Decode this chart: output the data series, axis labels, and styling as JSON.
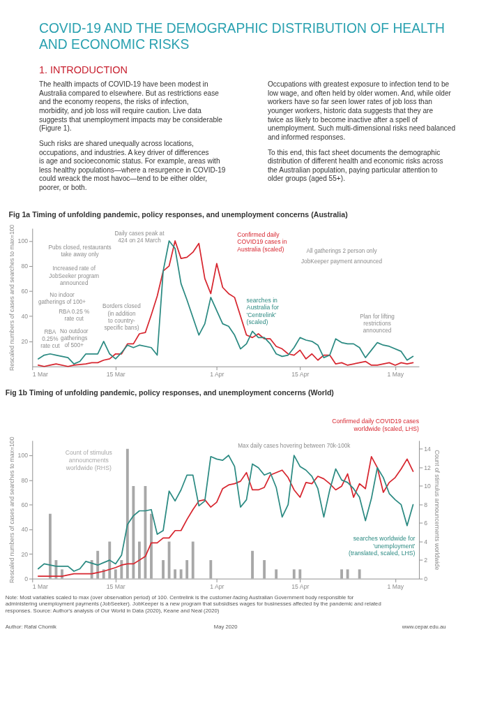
{
  "chart_data": [
    {
      "type": "other",
      "title": "COVID-19 AND THE DEMOGRAPHIC DISTRIBUTION OF HEALTH AND ECONOMIC RISKS",
      "annotations": [
        "1. INTRODUCTION",
        "The health impacts of COVID-19 have been modest in Australia compared to elsewhere. But as restrictions ease and the economy reopens, the risks of infection, morbidity, and job loss will require caution. Live data suggests that unemployment impacts may be considerable (Figure 1).",
        "Such risks are shared unequally across locations, occupations, and industries. A key driver of differences is age and socioeconomic status. For example, areas with less healthy populations—where a resurgence in COVID-19 could wreack the most havoc—tend to be either older, poorer, or both.",
        "Occupations with greatest exposure to infection tend to be low wage, and often held by older women. And, while older workers have so far seen lower rates of job loss than younger workers, historic data suggests that they are twice as likely to become inactive after a spell of unemployment. Such multi-dimensional risks need balanced and informed responses.",
        "To this end, this fact sheet documents the demographic distribution of different health and economic risks across the Australian population, paying particular attention to older groups (aged 55+)."
      ]
    },
    {
      "type": "line",
      "title": "Fig 1a Timing of unfolding pandemic, policy responses, and unemployment concerns (Australia)",
      "ylabel": "Rescaled numbers of cases and searches to max=100",
      "xlim": [
        "2020-03-01",
        "2020-05-05"
      ],
      "xticks": [
        {
          "value": "2020-03-01",
          "label": "1 Mar"
        },
        {
          "value": "2020-03-15",
          "label": "15 Mar"
        },
        {
          "value": "2020-04-01",
          "label": "1 Apr"
        },
        {
          "value": "2020-04-15",
          "label": "15 Apr"
        },
        {
          "value": "2020-05-01",
          "label": "1 May"
        }
      ],
      "ylim": [
        0,
        110
      ],
      "yticks": [
        20,
        40,
        60,
        80,
        100
      ],
      "series": [
        {
          "name": "Confirmed daily COVID19 cases in Australia (scaled)",
          "type": "line",
          "color": "#d7262f",
          "x": [
            "2020-03-02",
            "2020-03-03",
            "2020-03-04",
            "2020-03-05",
            "2020-03-07",
            "2020-03-08",
            "2020-03-10",
            "2020-03-11",
            "2020-03-12",
            "2020-03-13",
            "2020-03-14",
            "2020-03-15",
            "2020-03-16",
            "2020-03-17",
            "2020-03-18",
            "2020-03-19",
            "2020-03-20",
            "2020-03-21",
            "2020-03-22",
            "2020-03-23",
            "2020-03-24",
            "2020-03-25",
            "2020-03-26",
            "2020-03-27",
            "2020-03-28",
            "2020-03-29",
            "2020-03-30",
            "2020-03-31",
            "2020-04-01",
            "2020-04-02",
            "2020-04-03",
            "2020-04-04",
            "2020-04-06",
            "2020-04-07",
            "2020-04-08",
            "2020-04-09",
            "2020-04-10",
            "2020-04-11",
            "2020-04-12",
            "2020-04-13",
            "2020-04-14",
            "2020-04-15",
            "2020-04-16",
            "2020-04-17",
            "2020-04-18",
            "2020-04-19",
            "2020-04-20",
            "2020-04-21",
            "2020-04-22",
            "2020-04-23",
            "2020-04-25",
            "2020-04-26",
            "2020-04-27",
            "2020-04-28",
            "2020-04-30",
            "2020-05-01",
            "2020-05-02",
            "2020-05-03",
            "2020-05-04"
          ],
          "values": [
            1,
            0,
            1,
            2,
            0,
            1,
            2,
            3,
            3,
            5,
            6,
            10,
            10,
            18,
            18,
            26,
            27,
            41,
            56,
            76,
            80,
            100,
            86,
            87,
            91,
            98,
            70,
            58,
            82,
            63,
            58,
            55,
            25,
            23,
            26,
            22,
            22,
            16,
            14,
            10,
            9,
            13,
            6,
            10,
            5,
            9,
            9,
            2,
            3,
            1,
            3,
            4,
            1,
            1,
            3,
            1,
            3,
            2,
            3
          ]
        },
        {
          "name": "searches in Australia for 'Centrelink' (scaled)",
          "type": "line",
          "color": "#2b8a82",
          "x": [
            "2020-03-02",
            "2020-03-03",
            "2020-03-04",
            "2020-03-05",
            "2020-03-07",
            "2020-03-08",
            "2020-03-09",
            "2020-03-10",
            "2020-03-12",
            "2020-03-13",
            "2020-03-14",
            "2020-03-15",
            "2020-03-16",
            "2020-03-17",
            "2020-03-18",
            "2020-03-19",
            "2020-03-21",
            "2020-03-22",
            "2020-03-23",
            "2020-03-24",
            "2020-03-25",
            "2020-03-26",
            "2020-03-27",
            "2020-03-29",
            "2020-03-30",
            "2020-03-31",
            "2020-04-02",
            "2020-04-03",
            "2020-04-04",
            "2020-04-05",
            "2020-04-06",
            "2020-04-07",
            "2020-04-08",
            "2020-04-09",
            "2020-04-10",
            "2020-04-11",
            "2020-04-12",
            "2020-04-13",
            "2020-04-14",
            "2020-04-15",
            "2020-04-16",
            "2020-04-17",
            "2020-04-18",
            "2020-04-19",
            "2020-04-20",
            "2020-04-21",
            "2020-04-22",
            "2020-04-23",
            "2020-04-24",
            "2020-04-25",
            "2020-04-26",
            "2020-04-27",
            "2020-04-28",
            "2020-04-29",
            "2020-04-30",
            "2020-05-02",
            "2020-05-03",
            "2020-05-04"
          ],
          "values": [
            6,
            9,
            10,
            9,
            7,
            2,
            4,
            10,
            10,
            20,
            10,
            6,
            11,
            17,
            15,
            17,
            15,
            9,
            76,
            100,
            94,
            66,
            53,
            25,
            34,
            55,
            34,
            32,
            25,
            14,
            18,
            28,
            23,
            23,
            18,
            10,
            8,
            9,
            15,
            23,
            21,
            20,
            17,
            7,
            9,
            22,
            19,
            18,
            18,
            15,
            7,
            13,
            19,
            17,
            16,
            12,
            5,
            8
          ]
        }
      ],
      "annotations": [
        "Daily cases peak at\n424 on 24 March",
        "Pubs closed, restaurants\ntake away only",
        "Increased rate of\nJobSeeker program\nannounced",
        "No indoor\ngatherings of 100+",
        "RBA 0.25 %\nrate cut",
        "Borders closed\n(in addition\nto country-\nspecific bans)",
        "No outdoor\ngatherings\nof 500+",
        "RBA\n0.25%\nrate cut",
        "All gatherings 2 person only",
        "JobKeeper payment announced",
        "Plan for lifting\nrestrictions\nannounced"
      ]
    },
    {
      "type": "line",
      "title": "Fig 1b Timing of unfolding pandemic, policy responses, and unemployment concerns (World)",
      "ylabel": "Rescaled numbers of cases and searches to max=100",
      "y2label": "Count of stimulus announcements worldwide",
      "xlim": [
        "2020-03-01",
        "2020-05-05"
      ],
      "xticks": [
        {
          "value": "2020-03-01",
          "label": "1 Mar"
        },
        {
          "value": "2020-03-15",
          "label": "15 Mar"
        },
        {
          "value": "2020-04-01",
          "label": "1 Apr"
        },
        {
          "value": "2020-04-15",
          "label": "15 Apr"
        },
        {
          "value": "2020-05-01",
          "label": "1 May"
        }
      ],
      "ylim": [
        0,
        112
      ],
      "yticks": [
        0,
        20,
        40,
        60,
        80,
        100
      ],
      "y2lim": [
        0,
        14.9
      ],
      "y2ticks": [
        0,
        2,
        4,
        6,
        8,
        10,
        12,
        14
      ],
      "series": [
        {
          "name": "Confirmed daily COVID19 cases worldwide (scaled, LHS)",
          "type": "line",
          "color": "#d7262f",
          "x": [
            "2020-03-02",
            "2020-03-04",
            "2020-03-06",
            "2020-03-08",
            "2020-03-11",
            "2020-03-12",
            "2020-03-13",
            "2020-03-15",
            "2020-03-16",
            "2020-03-17",
            "2020-03-18",
            "2020-03-19",
            "2020-03-20",
            "2020-03-21",
            "2020-03-22",
            "2020-03-23",
            "2020-03-24",
            "2020-03-25",
            "2020-03-26",
            "2020-03-27",
            "2020-03-28",
            "2020-03-29",
            "2020-03-30",
            "2020-03-31",
            "2020-04-01",
            "2020-04-02",
            "2020-04-03",
            "2020-04-04",
            "2020-04-05",
            "2020-04-06",
            "2020-04-07",
            "2020-04-08",
            "2020-04-09",
            "2020-04-10",
            "2020-04-11",
            "2020-04-12",
            "2020-04-13",
            "2020-04-14",
            "2020-04-15",
            "2020-04-16",
            "2020-04-17",
            "2020-04-18",
            "2020-04-19",
            "2020-04-20",
            "2020-04-21",
            "2020-04-22",
            "2020-04-23",
            "2020-04-24",
            "2020-04-25",
            "2020-04-26",
            "2020-04-27",
            "2020-04-28",
            "2020-04-29",
            "2020-04-30",
            "2020-05-01",
            "2020-05-02",
            "2020-05-03",
            "2020-05-04"
          ],
          "values": [
            2,
            2,
            2,
            4,
            4,
            5,
            6,
            9,
            11,
            12,
            12,
            15,
            18,
            29,
            29,
            33,
            33,
            39,
            39,
            48,
            56,
            63,
            64,
            58,
            62,
            73,
            76,
            77,
            79,
            86,
            72,
            72,
            74,
            84,
            86,
            88,
            82,
            72,
            66,
            78,
            77,
            83,
            81,
            77,
            72,
            75,
            85,
            66,
            77,
            73,
            99,
            90,
            70,
            78,
            82,
            89,
            97,
            87
          ]
        },
        {
          "name": "searches worldwide for 'unemployment' (translated, scaled, LHS)",
          "type": "line",
          "color": "#2b8a82",
          "x": [
            "2020-03-02",
            "2020-03-03",
            "2020-03-04",
            "2020-03-05",
            "2020-03-07",
            "2020-03-08",
            "2020-03-09",
            "2020-03-10",
            "2020-03-12",
            "2020-03-13",
            "2020-03-14",
            "2020-03-15",
            "2020-03-16",
            "2020-03-17",
            "2020-03-18",
            "2020-03-19",
            "2020-03-20",
            "2020-03-21",
            "2020-03-22",
            "2020-03-23",
            "2020-03-24",
            "2020-03-25",
            "2020-03-26",
            "2020-03-27",
            "2020-03-28",
            "2020-03-29",
            "2020-03-30",
            "2020-03-31",
            "2020-04-01",
            "2020-04-02",
            "2020-04-03",
            "2020-04-04",
            "2020-04-05",
            "2020-04-06",
            "2020-04-07",
            "2020-04-08",
            "2020-04-09",
            "2020-04-10",
            "2020-04-11",
            "2020-04-12",
            "2020-04-13",
            "2020-04-14",
            "2020-04-15",
            "2020-04-16",
            "2020-04-17",
            "2020-04-18",
            "2020-04-19",
            "2020-04-20",
            "2020-04-21",
            "2020-04-22",
            "2020-04-23",
            "2020-04-24",
            "2020-04-25",
            "2020-04-26",
            "2020-04-27",
            "2020-04-28",
            "2020-04-29",
            "2020-04-30",
            "2020-05-01",
            "2020-05-02",
            "2020-05-03",
            "2020-05-04"
          ],
          "values": [
            8,
            12,
            11,
            10,
            10,
            6,
            8,
            14,
            11,
            13,
            15,
            12,
            19,
            44,
            51,
            55,
            55,
            56,
            36,
            39,
            71,
            63,
            72,
            84,
            84,
            59,
            63,
            99,
            97,
            96,
            100,
            91,
            58,
            64,
            93,
            90,
            84,
            86,
            74,
            50,
            60,
            100,
            91,
            88,
            83,
            73,
            50,
            72,
            89,
            80,
            78,
            73,
            66,
            47,
            65,
            90,
            82,
            69,
            64,
            60,
            43,
            60
          ]
        },
        {
          "name": "Count of stimulus announcments worldwide (RHS)",
          "type": "bar",
          "axis": "y2",
          "color": "#a8a8a8",
          "x": [
            "2020-03-04",
            "2020-03-05",
            "2020-03-06",
            "2020-03-11",
            "2020-03-12",
            "2020-03-13",
            "2020-03-14",
            "2020-03-15",
            "2020-03-16",
            "2020-03-17",
            "2020-03-18",
            "2020-03-19",
            "2020-03-20",
            "2020-03-21",
            "2020-03-23",
            "2020-03-24",
            "2020-03-25",
            "2020-03-26",
            "2020-03-27",
            "2020-03-28",
            "2020-03-31",
            "2020-04-07",
            "2020-04-09",
            "2020-04-11",
            "2020-04-14",
            "2020-04-15",
            "2020-04-22",
            "2020-04-23",
            "2020-04-25"
          ],
          "values": [
            7,
            2,
            1,
            2,
            3,
            1,
            4,
            1,
            2,
            14,
            10,
            4,
            10,
            7,
            2,
            4,
            1,
            1,
            2,
            4,
            2,
            3,
            2,
            1,
            1,
            1,
            1,
            1,
            1
          ]
        }
      ],
      "annotations": [
        "Max daily cases hovering between 70k-100k",
        "Note: Most variables scaled to max (over observation period) of 100. Centrelink is the customer-facing Australian Government body responsible for administering unemployment payments (JobSeeker). JobKeeper is a new program that subsidises wages for businesses affected by the pandemic and related responses. Source: Author's analysis of Our World in Data (2020), Keane and Neal (2020)",
        "Author: Rafal Chomik",
        "May 2020",
        "www.cepar.edu.au"
      ]
    }
  ]
}
